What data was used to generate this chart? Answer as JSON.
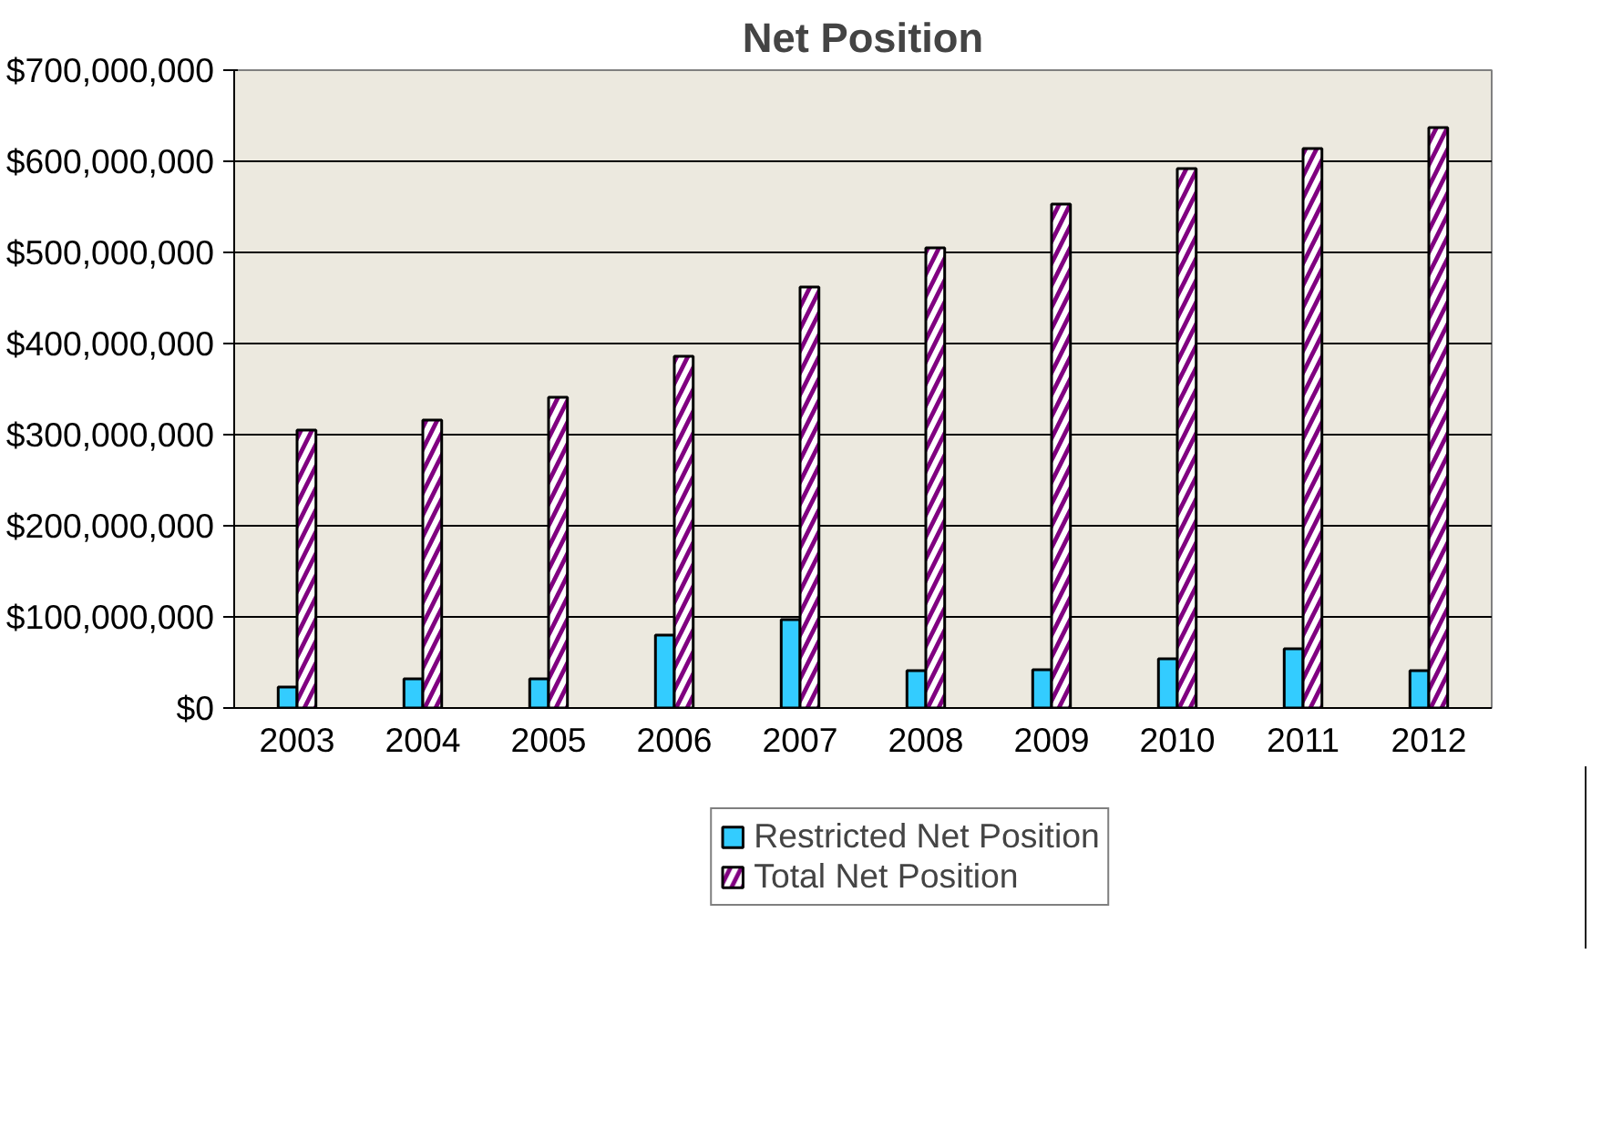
{
  "chart_data": {
    "type": "bar",
    "title": "Net Position",
    "categories": [
      "2003",
      "2004",
      "2005",
      "2006",
      "2007",
      "2008",
      "2009",
      "2010",
      "2011",
      "2012"
    ],
    "series": [
      {
        "name": "Restricted Net Position",
        "color": "#33ccff",
        "values": [
          23000000,
          32000000,
          32000000,
          80000000,
          97000000,
          41000000,
          42000000,
          54000000,
          65000000,
          41000000
        ]
      },
      {
        "name": "Total Net Position",
        "color": "#800080",
        "values": [
          305000000,
          316000000,
          341000000,
          386000000,
          462000000,
          505000000,
          553000000,
          592000000,
          614000000,
          637000000
        ]
      }
    ],
    "ylim": [
      0,
      700000000
    ],
    "yticks": [
      {
        "value": 0,
        "label": "$0"
      },
      {
        "value": 100000000,
        "label": "$100,000,000"
      },
      {
        "value": 200000000,
        "label": "$200,000,000"
      },
      {
        "value": 300000000,
        "label": "$300,000,000"
      },
      {
        "value": 400000000,
        "label": "$400,000,000"
      },
      {
        "value": 500000000,
        "label": "$500,000,000"
      },
      {
        "value": 600000000,
        "label": "$600,000,000"
      },
      {
        "value": 700000000,
        "label": "$700,000,000"
      }
    ],
    "grid": "y",
    "legend": "bottom"
  }
}
